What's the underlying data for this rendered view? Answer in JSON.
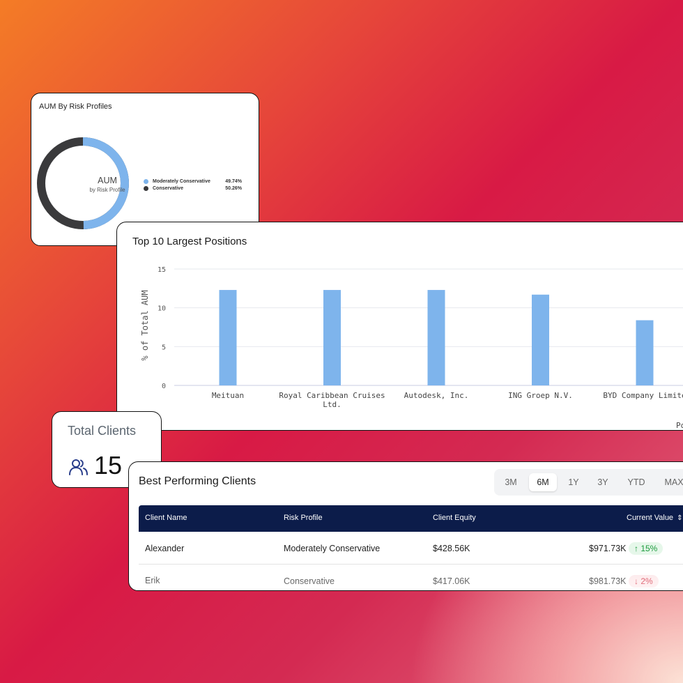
{
  "aum": {
    "title": "AUM By Risk Profiles",
    "center_title": "AUM",
    "center_subtitle": "by Risk Profile",
    "legend": [
      {
        "label": "Moderately Conservative",
        "value": "49.74%",
        "color": "#7eb4ec"
      },
      {
        "label": "Conservative",
        "value": "50.26%",
        "color": "#3a3a3c"
      }
    ]
  },
  "positions": {
    "title": "Top 10 Largest Positions",
    "footer_fragment": "Po"
  },
  "chart_data": {
    "type": "bar",
    "categories": [
      "Meituan",
      "Royal Caribbean Cruises Ltd.",
      "Autodesk, Inc.",
      "ING Groep N.V.",
      "BYD Company Limite"
    ],
    "values": [
      12.3,
      12.3,
      12.3,
      11.7,
      8.4
    ],
    "ylabel": "% of Total AUM",
    "ylim": [
      0,
      15
    ],
    "yticks": [
      0,
      5,
      10,
      15
    ],
    "grid": true,
    "bar_color": "#7eb4ec"
  },
  "clients": {
    "title": "Total Clients",
    "count": "15",
    "icon": "users-icon"
  },
  "best": {
    "title": "Best Performing Clients",
    "periods": [
      "3M",
      "6M",
      "1Y",
      "3Y",
      "YTD",
      "MAX"
    ],
    "active_period": "6M",
    "columns": [
      "Client Name",
      "Risk Profile",
      "Client Equity",
      "Current Value"
    ],
    "rows": [
      {
        "name": "Alexander",
        "risk": "Moderately Conservative",
        "equity": "$428.56K",
        "value": "$971.73K",
        "change": "↑ 15%",
        "trend": "up"
      },
      {
        "name": "Erik",
        "risk": "Conservative",
        "equity": "$417.06K",
        "value": "$981.73K",
        "change": "↓ 2%",
        "trend": "down"
      }
    ]
  }
}
